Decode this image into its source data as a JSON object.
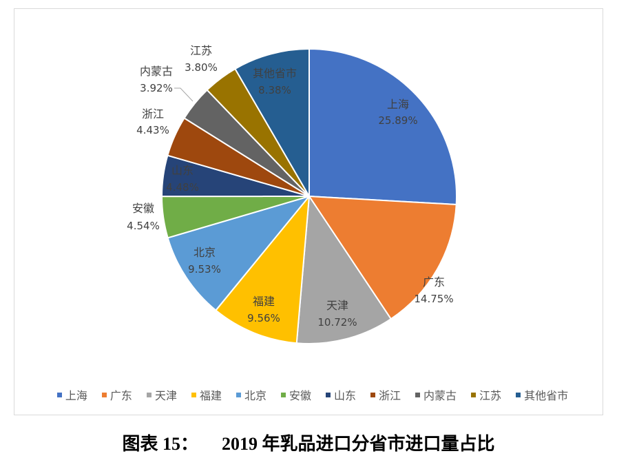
{
  "chart_data": {
    "type": "pie",
    "categories": [
      "上海",
      "广东",
      "天津",
      "福建",
      "北京",
      "安徽",
      "山东",
      "浙江",
      "内蒙古",
      "江苏",
      "其他省市"
    ],
    "values": [
      25.89,
      14.75,
      10.72,
      9.56,
      9.53,
      4.54,
      4.48,
      4.43,
      3.92,
      3.8,
      8.38
    ],
    "value_labels": [
      "25.89%",
      "14.75%",
      "10.72%",
      "9.56%",
      "9.53%",
      "4.54%",
      "4.48%",
      "4.43%",
      "3.92%",
      "3.80%",
      "8.38%"
    ],
    "colors": [
      "#4472C4",
      "#ED7D31",
      "#A5A5A5",
      "#FFC000",
      "#5B9BD5",
      "#70AD47",
      "#264478",
      "#9E480E",
      "#636363",
      "#997300",
      "#255E91"
    ],
    "legend_position": "bottom"
  },
  "caption": {
    "label": "图表 15：",
    "text": "2019 年乳品进口分省市进口量占比"
  }
}
